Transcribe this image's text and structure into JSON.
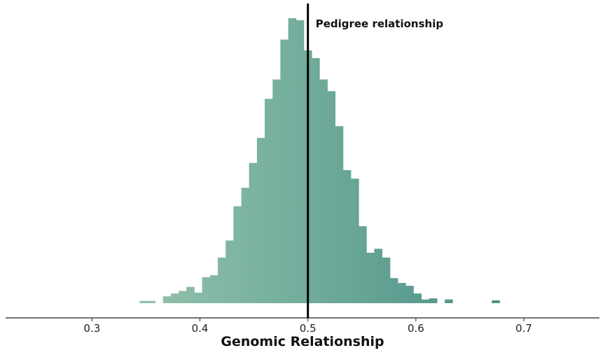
{
  "chart_data": {
    "type": "bar",
    "title": "",
    "xlabel": "Genomic Relationship",
    "ylabel": "",
    "xlim": [
      0.22,
      0.77
    ],
    "ylim": [
      0,
      1.03
    ],
    "xticks": [
      0.3,
      0.4,
      0.5,
      0.6,
      0.7
    ],
    "xtick_labels": [
      "0.3",
      "0.4",
      "0.5",
      "0.6",
      "0.7"
    ],
    "bin_width": 0.00725,
    "bins": [
      {
        "x0": 0.344,
        "value": 0.008
      },
      {
        "x0": 0.3513,
        "value": 0.008
      },
      {
        "x0": 0.3658,
        "value": 0.024
      },
      {
        "x0": 0.373,
        "value": 0.034
      },
      {
        "x0": 0.3803,
        "value": 0.043
      },
      {
        "x0": 0.3875,
        "value": 0.057
      },
      {
        "x0": 0.3948,
        "value": 0.037
      },
      {
        "x0": 0.402,
        "value": 0.091
      },
      {
        "x0": 0.4093,
        "value": 0.098
      },
      {
        "x0": 0.4165,
        "value": 0.16
      },
      {
        "x0": 0.4238,
        "value": 0.22
      },
      {
        "x0": 0.431,
        "value": 0.34
      },
      {
        "x0": 0.4383,
        "value": 0.405
      },
      {
        "x0": 0.4455,
        "value": 0.492
      },
      {
        "x0": 0.4528,
        "value": 0.58
      },
      {
        "x0": 0.46,
        "value": 0.717
      },
      {
        "x0": 0.4673,
        "value": 0.785
      },
      {
        "x0": 0.4745,
        "value": 0.925
      },
      {
        "x0": 0.4818,
        "value": 1.0
      },
      {
        "x0": 0.489,
        "value": 0.993
      },
      {
        "x0": 0.4963,
        "value": 0.887
      },
      {
        "x0": 0.5035,
        "value": 0.86
      },
      {
        "x0": 0.5108,
        "value": 0.785
      },
      {
        "x0": 0.518,
        "value": 0.744
      },
      {
        "x0": 0.5253,
        "value": 0.621
      },
      {
        "x0": 0.5325,
        "value": 0.467
      },
      {
        "x0": 0.5398,
        "value": 0.437
      },
      {
        "x0": 0.547,
        "value": 0.27
      },
      {
        "x0": 0.5543,
        "value": 0.177
      },
      {
        "x0": 0.5615,
        "value": 0.191
      },
      {
        "x0": 0.5688,
        "value": 0.16
      },
      {
        "x0": 0.576,
        "value": 0.088
      },
      {
        "x0": 0.5833,
        "value": 0.071
      },
      {
        "x0": 0.5905,
        "value": 0.061
      },
      {
        "x0": 0.5978,
        "value": 0.034
      },
      {
        "x0": 0.605,
        "value": 0.013
      },
      {
        "x0": 0.6123,
        "value": 0.017
      },
      {
        "x0": 0.6268,
        "value": 0.013
      },
      {
        "x0": 0.6703,
        "value": 0.01
      }
    ],
    "reference_line": {
      "x": 0.5,
      "label": "Pedigree relationship"
    },
    "grid": false,
    "colors": {
      "low": "#94c3ad",
      "high": "#4a9186",
      "line": "#000000",
      "axis": "#222222"
    }
  }
}
